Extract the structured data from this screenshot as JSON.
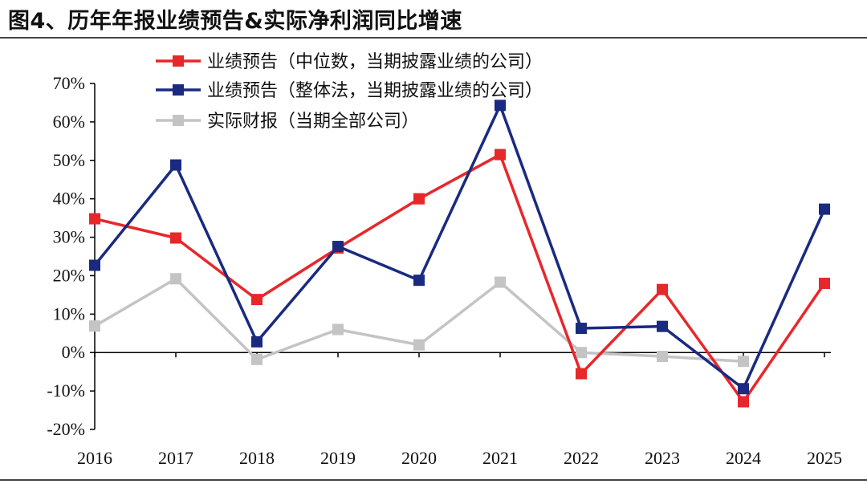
{
  "figure_title": "图4、历年年报业绩预告&实际净利润同比增速",
  "chart_data": {
    "type": "line",
    "title": "图4、历年年报业绩预告&实际净利润同比增速",
    "xlabel": "",
    "ylabel": "",
    "categories": [
      "2016",
      "2017",
      "2018",
      "2019",
      "2020",
      "2021",
      "2022",
      "2023",
      "2024",
      "2025"
    ],
    "ylim": [
      -20,
      70
    ],
    "yticks": [
      -20,
      -10,
      0,
      10,
      20,
      30,
      40,
      50,
      60,
      70
    ],
    "ytick_labels": [
      "-20%",
      "-10%",
      "0%",
      "10%",
      "20%",
      "30%",
      "40%",
      "50%",
      "60%",
      "70%"
    ],
    "grid": false,
    "legend_position": "top",
    "series": [
      {
        "name": "业绩预告（中位数，当期披露业绩的公司）",
        "color": "#e8272a",
        "values": [
          34.8,
          29.8,
          13.8,
          27.2,
          40.0,
          51.5,
          -5.5,
          16.4,
          -12.8,
          18.0
        ]
      },
      {
        "name": "业绩预告（整体法，当期披露业绩的公司）",
        "color": "#1a2a80",
        "values": [
          22.7,
          48.8,
          2.8,
          27.6,
          18.8,
          64.3,
          6.3,
          6.8,
          -9.4,
          37.3
        ]
      },
      {
        "name": "实际财报（当期全部公司）",
        "color": "#c4c4c4",
        "values": [
          6.9,
          19.2,
          -1.8,
          6.0,
          2.0,
          18.3,
          0.0,
          -1.0,
          -2.3,
          null
        ]
      }
    ]
  }
}
